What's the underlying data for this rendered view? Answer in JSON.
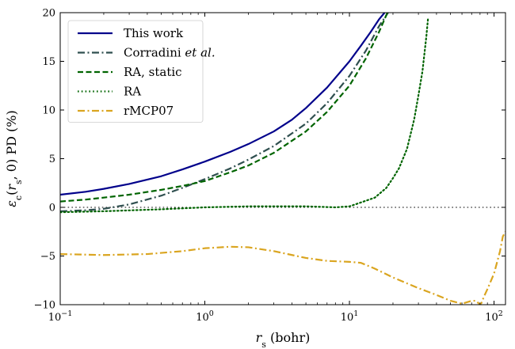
{
  "chart_data": {
    "type": "line",
    "title": "",
    "xlabel": "r_s (bohr)",
    "ylabel": "ε_c(r_s, 0) PD (%)",
    "xscale": "log",
    "xlim": [
      0.1,
      120
    ],
    "ylim": [
      -10,
      20
    ],
    "xticks": [
      {
        "value": 0.1,
        "base": "10",
        "exp": "−1"
      },
      {
        "value": 1,
        "base": "10",
        "exp": "0"
      },
      {
        "value": 10,
        "base": "10",
        "exp": "1"
      },
      {
        "value": 100,
        "base": "10",
        "exp": "2"
      }
    ],
    "yticks": [
      {
        "value": -10,
        "label": "−10"
      },
      {
        "value": -5,
        "label": "−5"
      },
      {
        "value": 0,
        "label": "0"
      },
      {
        "value": 5,
        "label": "5"
      },
      {
        "value": 10,
        "label": "10"
      },
      {
        "value": 15,
        "label": "15"
      },
      {
        "value": 20,
        "label": "20"
      }
    ],
    "reference_line": {
      "y": 0,
      "color": "#000000",
      "dash": "dotted"
    },
    "legend_position": "top-left",
    "series": [
      {
        "name": "This work",
        "color": "#00008b",
        "dash": "solid",
        "x": [
          0.1,
          0.15,
          0.2,
          0.3,
          0.5,
          0.7,
          1,
          1.5,
          2,
          3,
          4,
          5,
          7,
          10,
          12,
          14,
          16,
          17.5
        ],
        "y": [
          1.3,
          1.6,
          1.9,
          2.4,
          3.2,
          3.9,
          4.7,
          5.7,
          6.5,
          7.8,
          9.0,
          10.2,
          12.3,
          15.0,
          16.6,
          18.0,
          19.3,
          20.0
        ]
      },
      {
        "name": "Corradini et al.",
        "color": "#2f4f4f",
        "dash": "dashdot",
        "x": [
          0.1,
          0.15,
          0.2,
          0.3,
          0.5,
          0.7,
          1,
          1.5,
          2,
          3,
          5,
          7,
          10,
          13,
          16,
          18.5
        ],
        "y": [
          -0.4,
          -0.3,
          -0.15,
          0.3,
          1.2,
          2.0,
          2.9,
          4.0,
          4.9,
          6.3,
          8.6,
          10.7,
          13.5,
          16.1,
          18.6,
          20.0
        ]
      },
      {
        "name": "RA, static",
        "color": "#006400",
        "dash": "dashed",
        "x": [
          0.1,
          0.15,
          0.2,
          0.3,
          0.5,
          0.7,
          1,
          1.5,
          2,
          3,
          5,
          7,
          10,
          13,
          16,
          18.3
        ],
        "y": [
          0.6,
          0.8,
          1.0,
          1.3,
          1.8,
          2.2,
          2.7,
          3.6,
          4.3,
          5.6,
          7.8,
          9.8,
          12.5,
          15.3,
          18.0,
          20.0
        ]
      },
      {
        "name": "RA",
        "color": "#006400",
        "dash": "dotted",
        "x": [
          0.1,
          0.2,
          0.5,
          1,
          2,
          3,
          5,
          8,
          10,
          12,
          15,
          18,
          20,
          22,
          25,
          28,
          30,
          32,
          34,
          35
        ],
        "y": [
          -0.5,
          -0.4,
          -0.2,
          0.0,
          0.1,
          0.1,
          0.1,
          0.0,
          0.1,
          0.5,
          1.0,
          2.0,
          3.0,
          4.0,
          6.0,
          9.0,
          11.5,
          14.0,
          17.5,
          19.5
        ]
      },
      {
        "name": "rMCP07",
        "color": "#daa520",
        "dash": "dashdot",
        "x": [
          0.1,
          0.2,
          0.4,
          0.7,
          1,
          1.5,
          2,
          3,
          5,
          7,
          10,
          12,
          15,
          20,
          30,
          40,
          50,
          60,
          70,
          75,
          80,
          82,
          85,
          90,
          100,
          110,
          115,
          120
        ],
        "y": [
          -4.8,
          -4.9,
          -4.8,
          -4.5,
          -4.2,
          -4.05,
          -4.1,
          -4.5,
          -5.2,
          -5.5,
          -5.6,
          -5.7,
          -6.3,
          -7.2,
          -8.3,
          -9.0,
          -9.6,
          -9.9,
          -9.6,
          -9.6,
          -10.0,
          -9.8,
          -9.2,
          -8.4,
          -6.8,
          -4.5,
          -3.0,
          -2.5
        ]
      }
    ]
  }
}
